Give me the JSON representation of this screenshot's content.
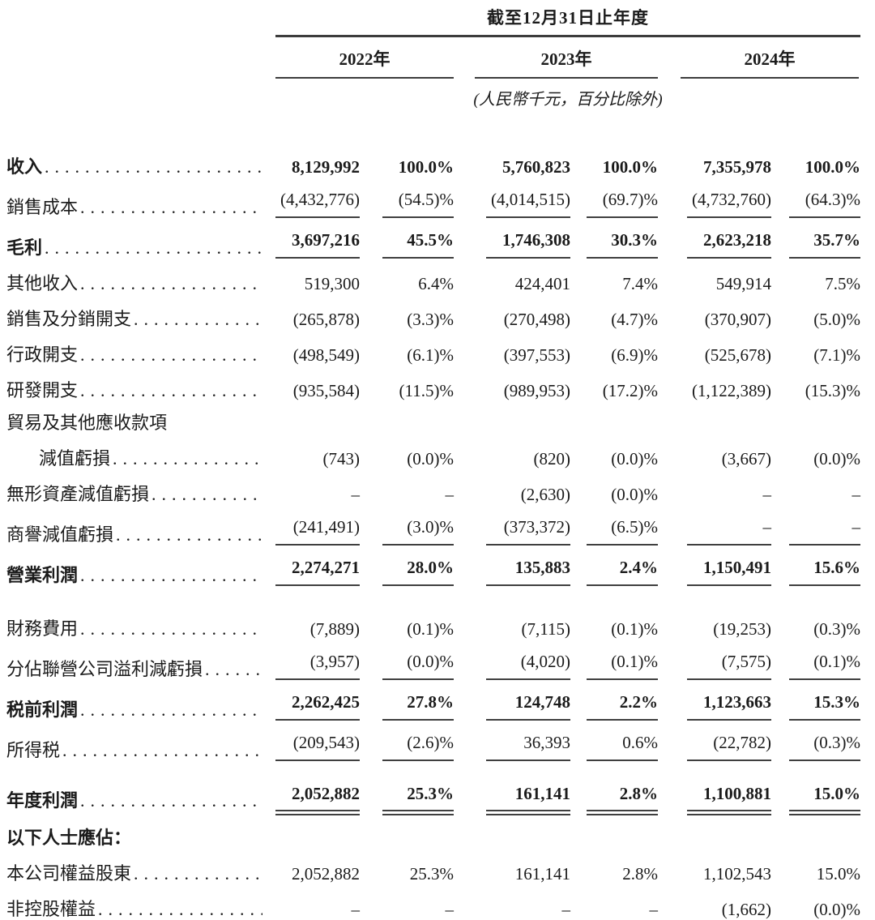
{
  "colors": {
    "text": "#1b1b1b",
    "rule": "#3c3c3c",
    "background": "#ffffff"
  },
  "table": {
    "period_header": "截至12月31日止年度",
    "unit_note": "(人民幣千元，百分比除外)",
    "years": [
      "2022年",
      "2023年",
      "2024年"
    ],
    "rows": [
      {
        "label": "收入",
        "bold": true,
        "dots": true,
        "rule": "none",
        "values": [
          "8,129,992",
          "100.0%",
          "5,760,823",
          "100.0%",
          "7,355,978",
          "100.0%"
        ]
      },
      {
        "label": "銷售成本",
        "dots": true,
        "rule": "single",
        "values": [
          "(4,432,776)",
          "(54.5)%",
          "(4,014,515)",
          "(69.7)%",
          "(4,732,760)",
          "(64.3)%"
        ]
      },
      {
        "label": "毛利",
        "bold": true,
        "dots": true,
        "rule": "single",
        "values": [
          "3,697,216",
          "45.5%",
          "1,746,308",
          "30.3%",
          "2,623,218",
          "35.7%"
        ]
      },
      {
        "label": "其他收入",
        "dots": true,
        "values": [
          "519,300",
          "6.4%",
          "424,401",
          "7.4%",
          "549,914",
          "7.5%"
        ]
      },
      {
        "label": "銷售及分銷開支",
        "dots": true,
        "values": [
          "(265,878)",
          "(3.3)%",
          "(270,498)",
          "(4.7)%",
          "(370,907)",
          "(5.0)%"
        ]
      },
      {
        "label": "行政開支",
        "dots": true,
        "values": [
          "(498,549)",
          "(6.1)%",
          "(397,553)",
          "(6.9)%",
          "(525,678)",
          "(7.1)%"
        ]
      },
      {
        "label": "研發開支",
        "dots": true,
        "values": [
          "(935,584)",
          "(11.5)%",
          "(989,953)",
          "(17.2)%",
          "(1,122,389)",
          "(15.3)%"
        ]
      },
      {
        "label": "貿易及其他應收款項",
        "label_only": true
      },
      {
        "label": "減值虧損",
        "indent": true,
        "dots": true,
        "values": [
          "(743)",
          "(0.0)%",
          "(820)",
          "(0.0)%",
          "(3,667)",
          "(0.0)%"
        ]
      },
      {
        "label": "無形資產減值虧損",
        "dots": true,
        "values": [
          "–",
          "–",
          "(2,630)",
          "(0.0)%",
          "–",
          "–"
        ]
      },
      {
        "label": "商譽減值虧損",
        "dots": true,
        "rule": "single",
        "values": [
          "(241,491)",
          "(3.0)%",
          "(373,372)",
          "(6.5)%",
          "–",
          "–"
        ]
      },
      {
        "label": "營業利潤",
        "bold": true,
        "dots": true,
        "rule": "single",
        "gap_after": "lg",
        "values": [
          "2,274,271",
          "28.0%",
          "135,883",
          "2.4%",
          "1,150,491",
          "15.6%"
        ]
      },
      {
        "label": "財務費用",
        "dots": true,
        "values": [
          "(7,889)",
          "(0.1)%",
          "(7,115)",
          "(0.1)%",
          "(19,253)",
          "(0.3)%"
        ]
      },
      {
        "label": "分佔聯營公司溢利減虧損",
        "dots": true,
        "rule": "single",
        "values": [
          "(3,957)",
          "(0.0)%",
          "(4,020)",
          "(0.1)%",
          "(7,575)",
          "(0.1)%"
        ]
      },
      {
        "label": "税前利潤",
        "bold": true,
        "dots": true,
        "rule": "single",
        "values": [
          "2,262,425",
          "27.8%",
          "124,748",
          "2.2%",
          "1,123,663",
          "15.3%"
        ]
      },
      {
        "label": "所得税",
        "dots": true,
        "rule": "single",
        "values": [
          "(209,543)",
          "(2.6)%",
          "36,393",
          "0.6%",
          "(22,782)",
          "(0.3)%"
        ]
      },
      {
        "label": "年度利潤",
        "bold": true,
        "dots": true,
        "rule": "double",
        "gap_after": "md",
        "values": [
          "2,052,882",
          "25.3%",
          "161,141",
          "2.8%",
          "1,100,881",
          "15.0%"
        ]
      },
      {
        "label": "以下人士應佔：",
        "bold": true,
        "label_only": true
      },
      {
        "label": "本公司權益股東",
        "dots": true,
        "values": [
          "2,052,882",
          "25.3%",
          "161,141",
          "2.8%",
          "1,102,543",
          "15.0%"
        ]
      },
      {
        "label": "非控股權益",
        "dots": true,
        "values": [
          "–",
          "–",
          "–",
          "–",
          "(1,662)",
          "(0.0)%"
        ]
      }
    ]
  }
}
